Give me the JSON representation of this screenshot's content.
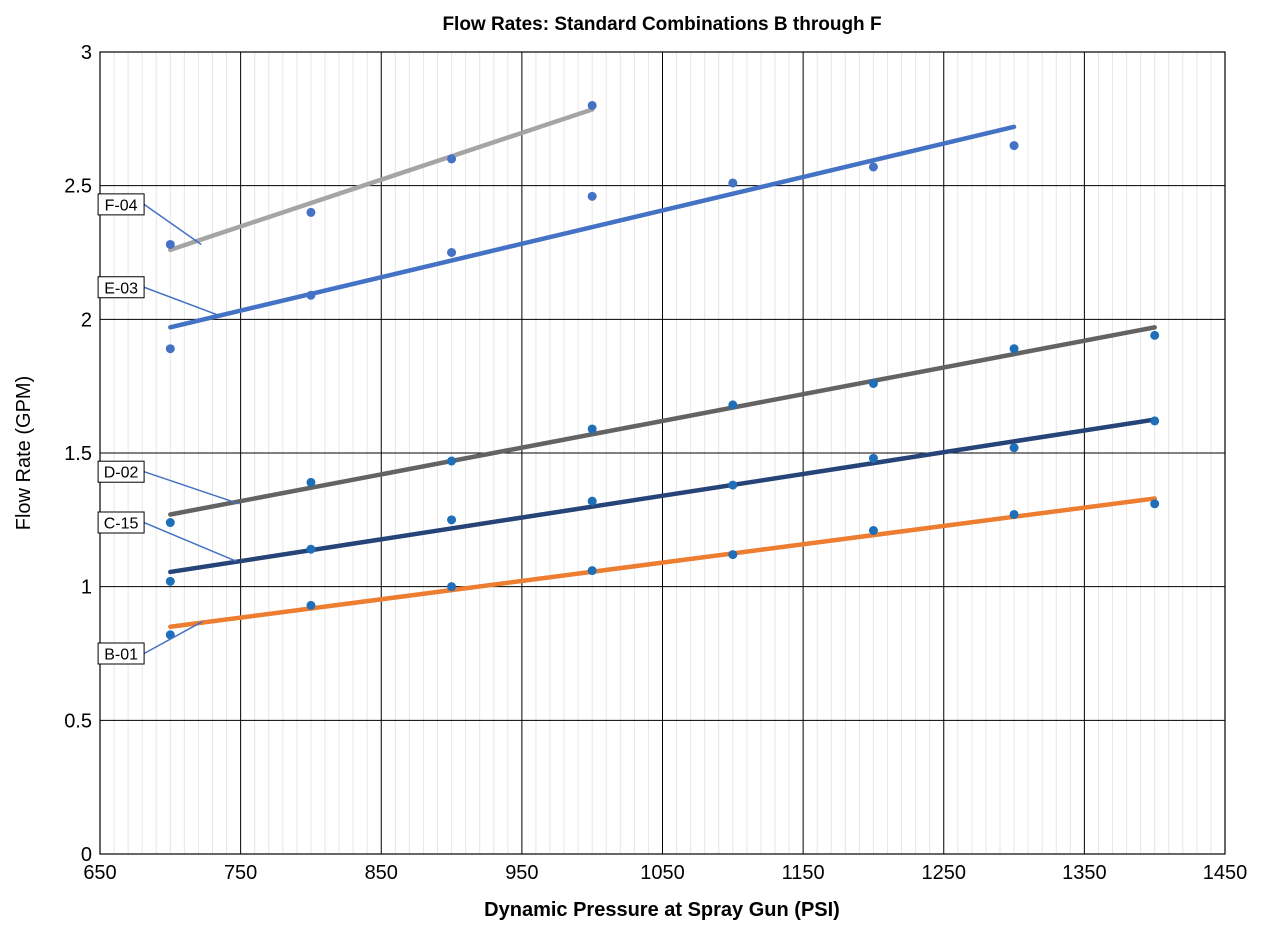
{
  "chart_data": {
    "type": "scatter",
    "title": "Flow Rates: Standard Combinations B through F",
    "xlabel": "Dynamic Pressure at Spray Gun (PSI)",
    "ylabel": "Flow Rate (GPM)",
    "xlim": [
      650,
      1450
    ],
    "ylim": [
      0,
      3
    ],
    "x_ticks": [
      650,
      750,
      850,
      950,
      1050,
      1150,
      1250,
      1350,
      1450
    ],
    "y_ticks": [
      0,
      0.5,
      1,
      1.5,
      2,
      2.5,
      3
    ],
    "x_tick_labels": [
      "650",
      "750",
      "850",
      "950",
      "1050",
      "1150",
      "1250",
      "1350",
      "1450"
    ],
    "y_tick_labels": [
      "0",
      "0.5",
      "1",
      "1.5",
      "2",
      "2.5",
      "3"
    ],
    "grid": true,
    "series": [
      {
        "name": "B-01",
        "color": "#ED7D31",
        "marker_color": "#1F6FB8",
        "points": [
          [
            700,
            0.82
          ],
          [
            800,
            0.93
          ],
          [
            900,
            1.0
          ],
          [
            1000,
            1.06
          ],
          [
            1100,
            1.12
          ],
          [
            1200,
            1.21
          ],
          [
            1300,
            1.27
          ],
          [
            1400,
            1.31
          ]
        ],
        "trendline": [
          [
            700,
            0.85
          ],
          [
            1400,
            1.33
          ]
        ]
      },
      {
        "name": "C-15",
        "color": "#264478",
        "marker_color": "#1F6FB8",
        "points": [
          [
            700,
            1.02
          ],
          [
            800,
            1.14
          ],
          [
            900,
            1.25
          ],
          [
            1000,
            1.32
          ],
          [
            1100,
            1.38
          ],
          [
            1200,
            1.48
          ],
          [
            1300,
            1.52
          ],
          [
            1400,
            1.62
          ]
        ],
        "trendline": [
          [
            700,
            1.055
          ],
          [
            1400,
            1.625
          ]
        ]
      },
      {
        "name": "D-02",
        "color": "#636363",
        "marker_color": "#1F6FB8",
        "points": [
          [
            700,
            1.24
          ],
          [
            800,
            1.39
          ],
          [
            900,
            1.47
          ],
          [
            1000,
            1.59
          ],
          [
            1100,
            1.68
          ],
          [
            1200,
            1.76
          ],
          [
            1300,
            1.89
          ],
          [
            1400,
            1.94
          ]
        ],
        "trendline": [
          [
            700,
            1.27
          ],
          [
            1400,
            1.97
          ]
        ]
      },
      {
        "name": "E-03",
        "color": "#4472C4",
        "marker_color": "#4472C4",
        "points": [
          [
            700,
            1.89
          ],
          [
            800,
            2.09
          ],
          [
            900,
            2.25
          ],
          [
            1000,
            2.46
          ],
          [
            1100,
            2.51
          ],
          [
            1200,
            2.57
          ],
          [
            1300,
            2.65
          ]
        ],
        "trendline": [
          [
            700,
            1.97
          ],
          [
            1300,
            2.72
          ]
        ]
      },
      {
        "name": "F-04",
        "color": "#A5A5A5",
        "marker_color": "#4472C4",
        "points": [
          [
            700,
            2.28
          ],
          [
            800,
            2.4
          ],
          [
            900,
            2.6
          ],
          [
            1000,
            2.8
          ]
        ],
        "trendline": [
          [
            700,
            2.26
          ],
          [
            1000,
            2.785
          ]
        ]
      }
    ],
    "annotations": [
      {
        "text": "F-04",
        "series": "F-04",
        "anchor": [
          722,
          2.28
        ],
        "label_at": [
          665,
          2.43
        ]
      },
      {
        "text": "E-03",
        "series": "E-03",
        "anchor": [
          737,
          2.01
        ],
        "label_at": [
          665,
          2.12
        ]
      },
      {
        "text": "D-02",
        "series": "D-02",
        "anchor": [
          749,
          1.31
        ],
        "label_at": [
          665,
          1.43
        ]
      },
      {
        "text": "C-15",
        "series": "C-15",
        "anchor": [
          747,
          1.095
        ],
        "label_at": [
          665,
          1.24
        ]
      },
      {
        "text": "B-01",
        "series": "B-01",
        "anchor": [
          723,
          0.87
        ],
        "label_at": [
          665,
          0.75
        ]
      }
    ]
  }
}
